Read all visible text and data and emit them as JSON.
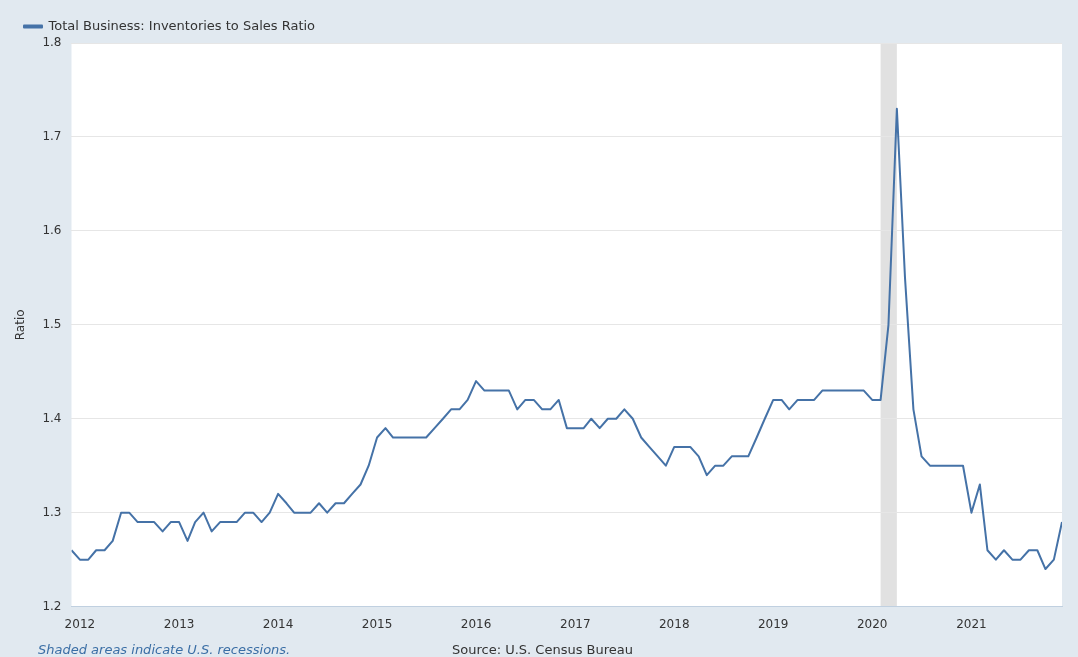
{
  "chart_data": {
    "type": "line",
    "ylabel": "Ratio",
    "x": [
      "2011-12",
      "2012-01",
      "2012-02",
      "2012-03",
      "2012-04",
      "2012-05",
      "2012-06",
      "2012-07",
      "2012-08",
      "2012-09",
      "2012-10",
      "2012-11",
      "2012-12",
      "2013-01",
      "2013-02",
      "2013-03",
      "2013-04",
      "2013-05",
      "2013-06",
      "2013-07",
      "2013-08",
      "2013-09",
      "2013-10",
      "2013-11",
      "2013-12",
      "2014-01",
      "2014-02",
      "2014-03",
      "2014-04",
      "2014-05",
      "2014-06",
      "2014-07",
      "2014-08",
      "2014-09",
      "2014-10",
      "2014-11",
      "2014-12",
      "2015-01",
      "2015-02",
      "2015-03",
      "2015-04",
      "2015-05",
      "2015-06",
      "2015-07",
      "2015-08",
      "2015-09",
      "2015-10",
      "2015-11",
      "2015-12",
      "2016-01",
      "2016-02",
      "2016-03",
      "2016-04",
      "2016-05",
      "2016-06",
      "2016-07",
      "2016-08",
      "2016-09",
      "2016-10",
      "2016-11",
      "2016-12",
      "2017-01",
      "2017-02",
      "2017-03",
      "2017-04",
      "2017-05",
      "2017-06",
      "2017-07",
      "2017-08",
      "2017-09",
      "2017-10",
      "2017-11",
      "2017-12",
      "2018-01",
      "2018-02",
      "2018-03",
      "2018-04",
      "2018-05",
      "2018-06",
      "2018-07",
      "2018-08",
      "2018-09",
      "2018-10",
      "2018-11",
      "2018-12",
      "2019-01",
      "2019-02",
      "2019-03",
      "2019-04",
      "2019-05",
      "2019-06",
      "2019-07",
      "2019-08",
      "2019-09",
      "2019-10",
      "2019-11",
      "2019-12",
      "2020-01",
      "2020-02",
      "2020-03",
      "2020-04",
      "2020-05",
      "2020-06",
      "2020-07",
      "2020-08",
      "2020-09",
      "2020-10",
      "2020-11",
      "2020-12",
      "2021-01",
      "2021-02",
      "2021-03",
      "2021-04",
      "2021-05",
      "2021-06",
      "2021-07",
      "2021-08",
      "2021-09",
      "2021-10",
      "2021-11",
      "2021-12"
    ],
    "series": [
      {
        "name": "Total Business: Inventories to Sales Ratio",
        "color": "#4572a7",
        "values": [
          1.26,
          1.25,
          1.25,
          1.26,
          1.26,
          1.27,
          1.3,
          1.3,
          1.29,
          1.29,
          1.29,
          1.28,
          1.29,
          1.29,
          1.27,
          1.29,
          1.3,
          1.28,
          1.29,
          1.29,
          1.29,
          1.3,
          1.3,
          1.29,
          1.3,
          1.32,
          1.31,
          1.3,
          1.3,
          1.3,
          1.31,
          1.3,
          1.31,
          1.31,
          1.32,
          1.33,
          1.35,
          1.38,
          1.39,
          1.38,
          1.38,
          1.38,
          1.38,
          1.38,
          1.39,
          1.4,
          1.41,
          1.41,
          1.42,
          1.44,
          1.43,
          1.43,
          1.43,
          1.43,
          1.41,
          1.42,
          1.42,
          1.41,
          1.41,
          1.42,
          1.39,
          1.39,
          1.39,
          1.4,
          1.39,
          1.4,
          1.4,
          1.41,
          1.4,
          1.38,
          1.37,
          1.36,
          1.35,
          1.37,
          1.37,
          1.37,
          1.36,
          1.34,
          1.35,
          1.35,
          1.36,
          1.36,
          1.36,
          1.38,
          1.4,
          1.42,
          1.42,
          1.41,
          1.42,
          1.42,
          1.42,
          1.43,
          1.43,
          1.43,
          1.43,
          1.43,
          1.43,
          1.42,
          1.42,
          1.5,
          1.73,
          1.55,
          1.41,
          1.36,
          1.35,
          1.35,
          1.35,
          1.35,
          1.35,
          1.3,
          1.33,
          1.26,
          1.25,
          1.26,
          1.25,
          1.25,
          1.26,
          1.26,
          1.24,
          1.25,
          1.29
        ]
      }
    ],
    "xlim": [
      "2011-12",
      "2021-12"
    ],
    "xticks": [
      "2012",
      "2013",
      "2014",
      "2015",
      "2016",
      "2017",
      "2018",
      "2019",
      "2020",
      "2021"
    ],
    "ylim": [
      1.2,
      1.8
    ],
    "yticks": [
      1.2,
      1.3,
      1.4,
      1.5,
      1.6,
      1.7,
      1.8
    ],
    "bands": [
      {
        "axis": "x",
        "from": "2020-02",
        "to": "2020-04",
        "color": "#e1e1e1"
      }
    ],
    "grid": "y",
    "legend": "top left",
    "line_style": "solid",
    "annotations": [
      "Shaded areas indicate U.S. recessions.",
      "Source: U.S. Census Bureau"
    ]
  }
}
